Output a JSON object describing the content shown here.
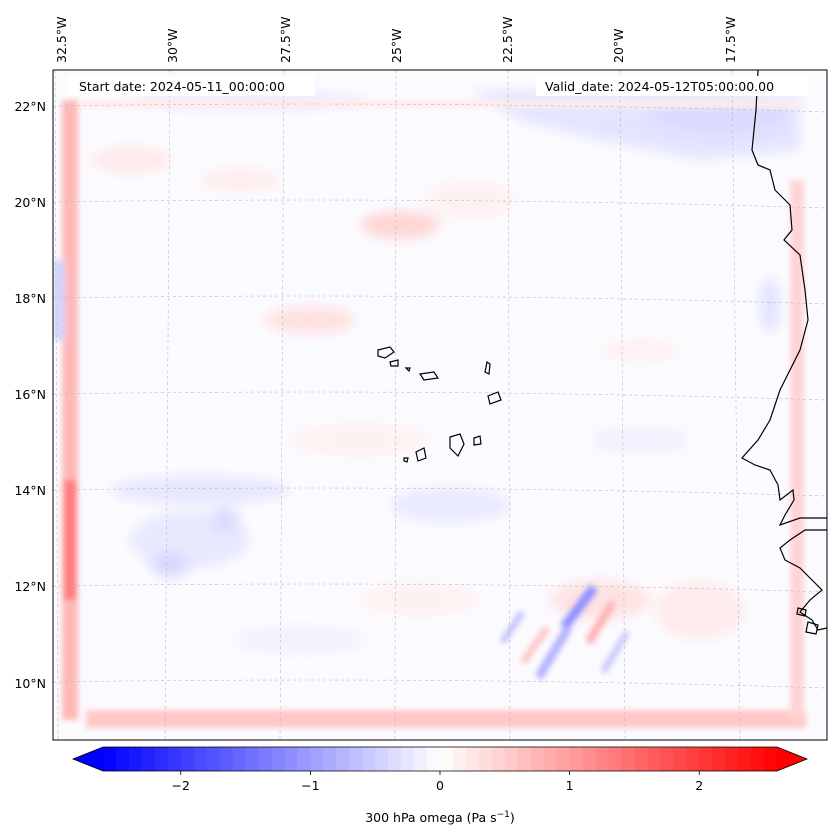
{
  "map": {
    "title_left": "Start date: 2024-05-11_00:00:00",
    "title_right": "Valid_date: 2024-05-12T05:00:00.00",
    "lon_labels": [
      "32.5°W",
      "30°W",
      "27.5°W",
      "25°W",
      "22.5°W",
      "20°W",
      "17.5°W"
    ],
    "lat_labels": [
      "22°N",
      "20°N",
      "18°N",
      "16°N",
      "14°N",
      "12°N",
      "10°N"
    ],
    "field": "300 hPa omega",
    "region": "Cape Verde Islands and West African coast (Mauritania, Senegal, Gambia, Guinea-Bissau)"
  },
  "colorbar": {
    "label_main": "300 hPa omega (Pa s",
    "label_exp": "−1",
    "label_close": ")",
    "ticks": [
      "−2",
      "−1",
      "0",
      "1",
      "2"
    ],
    "tick_values": [
      -2,
      -1,
      0,
      1,
      2
    ],
    "vmin": -2.6,
    "vmax": 2.6,
    "cmap": "bwr",
    "color_low": "#0000ff",
    "color_mid": "#ffffff",
    "color_high": "#ff0000"
  }
}
